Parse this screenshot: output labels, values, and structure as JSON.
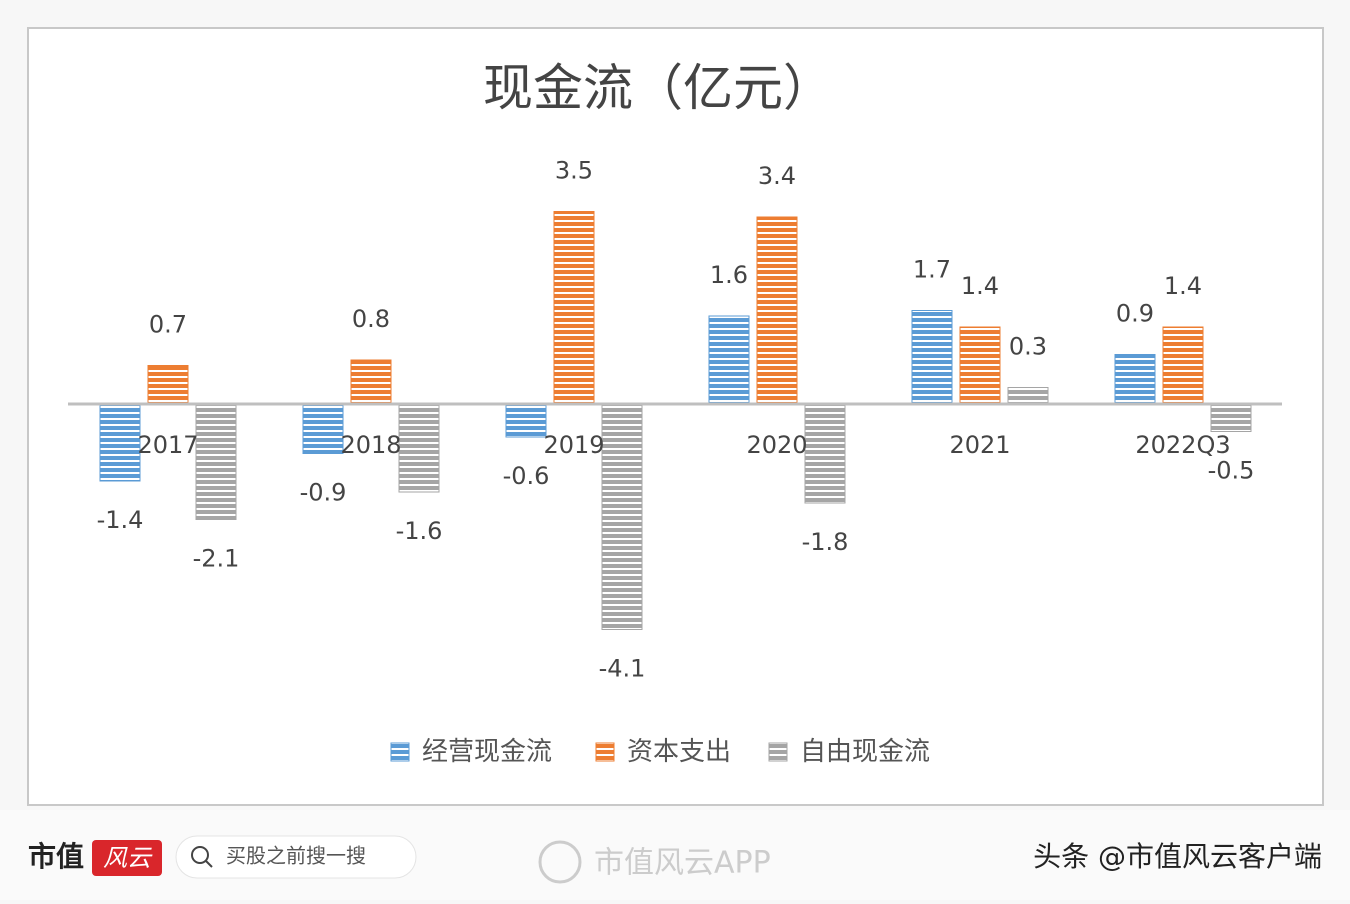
{
  "chart_data": {
    "type": "bar",
    "title": "现金流（亿元）",
    "categories": [
      "2017",
      "2018",
      "2019",
      "2020",
      "2021",
      "2022Q3"
    ],
    "series": [
      {
        "name": "经营现金流",
        "color": "#5b9bd5",
        "values": [
          -1.4,
          -0.9,
          -0.6,
          1.6,
          1.7,
          0.9
        ]
      },
      {
        "name": "资本支出",
        "color": "#ed7d31",
        "values": [
          0.7,
          0.8,
          3.5,
          3.4,
          1.4,
          1.4
        ]
      },
      {
        "name": "自由现金流",
        "color": "#a5a5a5",
        "values": [
          -2.1,
          -1.6,
          -4.1,
          -1.8,
          0.3,
          -0.5
        ]
      }
    ],
    "legend": "bottom"
  },
  "footer": {
    "brand": "市值",
    "logo": "风云",
    "search": "买股之前搜一搜",
    "app": "市值风云APP",
    "credit": "头条 @市值风云客户端"
  }
}
